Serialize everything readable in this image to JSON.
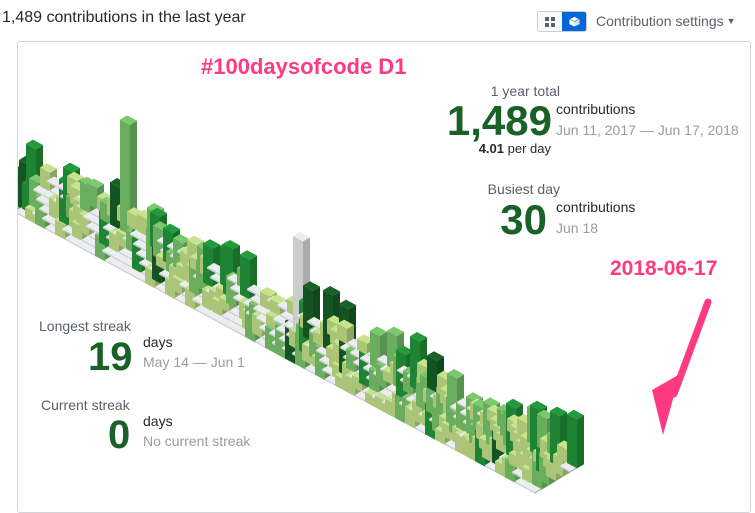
{
  "header": {
    "title": "1,489 contributions in the last year",
    "settings_label": "Contribution settings",
    "view_modes": [
      "grid-view-icon",
      "cube-view-icon"
    ]
  },
  "year_total": {
    "label": "1 year total",
    "value": "1,489",
    "unit": "contributions",
    "range": "Jun 11, 2017 — Jun 17, 2018",
    "per_day_value": "4.01",
    "per_day_label": "per day"
  },
  "busiest_day": {
    "label": "Busiest day",
    "value": "30",
    "unit": "contributions",
    "date": "Jun 18"
  },
  "longest_streak": {
    "label": "Longest streak",
    "value": "19",
    "unit": "days",
    "range": "May 14 — Jun 1"
  },
  "current_streak": {
    "label": "Current streak",
    "value": "0",
    "unit": "days",
    "range": "No current streak"
  },
  "annotations": {
    "top": "#100daysofcode D1",
    "right": "2018-06-17"
  },
  "colors": {
    "level0": "#ebedf0",
    "level1": "#c6e48b",
    "level2": "#7bc96f",
    "level3": "#239a3b",
    "level4": "#196127",
    "accent": "#ff3a83",
    "active_toggle": "#0366d6"
  }
}
